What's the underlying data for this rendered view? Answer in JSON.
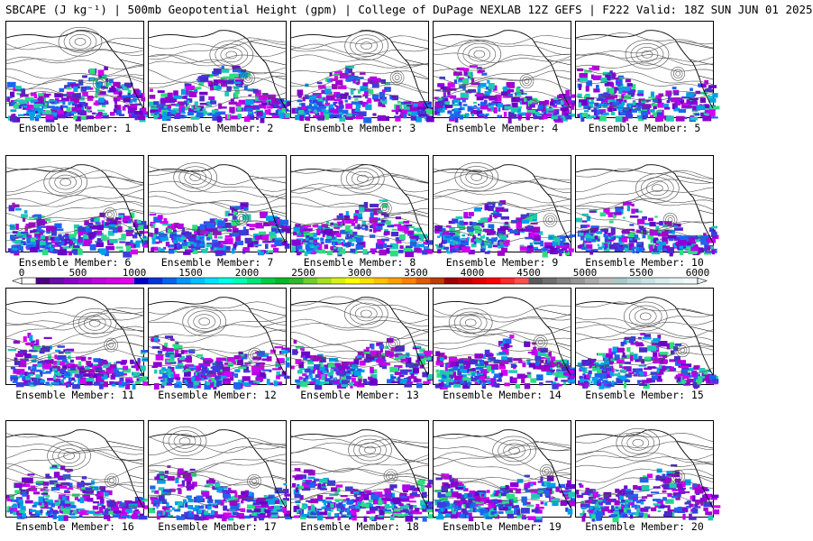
{
  "title": "SBCAPE (J kg⁻¹) | 500mb Geopotential Height (gpm) | College of DuPage NEXLAB 12Z GEFS | F222 Valid: 18Z SUN JUN 01 2025",
  "members": [
    {
      "label": "Ensemble Member: 1"
    },
    {
      "label": "Ensemble Member: 2"
    },
    {
      "label": "Ensemble Member: 3"
    },
    {
      "label": "Ensemble Member: 4"
    },
    {
      "label": "Ensemble Member: 5"
    },
    {
      "label": "Ensemble Member: 6"
    },
    {
      "label": "Ensemble Member: 7"
    },
    {
      "label": "Ensemble Member: 8"
    },
    {
      "label": "Ensemble Member: 9"
    },
    {
      "label": "Ensemble Member: 10"
    },
    {
      "label": "Ensemble Member: 11"
    },
    {
      "label": "Ensemble Member: 12"
    },
    {
      "label": "Ensemble Member: 13"
    },
    {
      "label": "Ensemble Member: 14"
    },
    {
      "label": "Ensemble Member: 15"
    },
    {
      "label": "Ensemble Member: 16"
    },
    {
      "label": "Ensemble Member: 17"
    },
    {
      "label": "Ensemble Member: 18"
    },
    {
      "label": "Ensemble Member: 19"
    },
    {
      "label": "Ensemble Member: 20"
    }
  ],
  "colorbar": {
    "ticks": [
      "0",
      "500",
      "1000",
      "1500",
      "2000",
      "2500",
      "3000",
      "3500",
      "4000",
      "4500",
      "5000",
      "5500",
      "6000"
    ],
    "colors": [
      "#ffffff",
      "#4b0082",
      "#6a0dad",
      "#8b00c8",
      "#a600d9",
      "#c000e0",
      "#d600e8",
      "#e600f0",
      "#0000c8",
      "#0032dc",
      "#0064f0",
      "#0096ff",
      "#00bfff",
      "#00e0ff",
      "#00ffe6",
      "#00ffb4",
      "#00e67a",
      "#00cc44",
      "#00b82a",
      "#2eb82e",
      "#6fcf2a",
      "#a8e020",
      "#d8f018",
      "#ffff00",
      "#ffe000",
      "#ffc000",
      "#ffa000",
      "#ff8000",
      "#e05a00",
      "#c03c00",
      "#a00000",
      "#c00000",
      "#e00000",
      "#ff0000",
      "#ff2a2a",
      "#ff5050",
      "#5a5a5a",
      "#6e6e6e",
      "#828282",
      "#969696",
      "#aaaaaa",
      "#bebebe",
      "#a8c8c8",
      "#b8d8d8",
      "#c8e4e4",
      "#d8eeee",
      "#e6f4f4",
      "#f0fafa"
    ]
  },
  "cape_palette": [
    "#8a00d4",
    "#b400e6",
    "#6a00c8",
    "#d200f0",
    "#4b2ac8",
    "#3c3cdc",
    "#1e64f0",
    "#00a0e6",
    "#20c8b4",
    "#2edc82",
    "#a000c8"
  ]
}
